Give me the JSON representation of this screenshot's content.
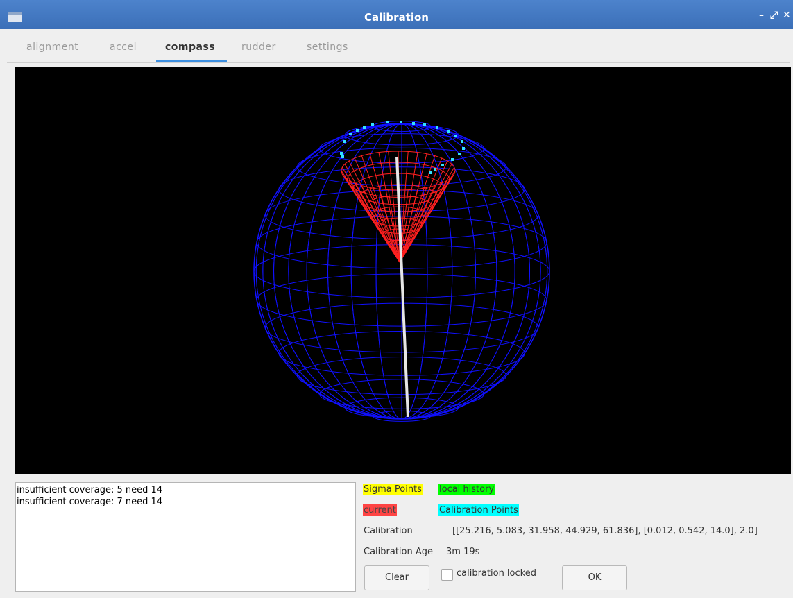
{
  "window": {
    "title": "Calibration",
    "controls": {
      "minimize": "–",
      "maximize": "⤢",
      "close": "✕"
    }
  },
  "tabs": [
    {
      "label": "alignment",
      "active": false
    },
    {
      "label": "accel",
      "active": false
    },
    {
      "label": "compass",
      "active": true
    },
    {
      "label": "rudder",
      "active": false
    },
    {
      "label": "settings",
      "active": false
    }
  ],
  "log": {
    "lines": [
      "insufficient coverage: 5  need 14",
      "insufficient coverage: 7  need 14"
    ]
  },
  "legend": {
    "sigma_points": "Sigma Points",
    "local_history": "local history",
    "current": "current",
    "calibration_points": "Calibration Points",
    "colors": {
      "sigma_points": "#ffff00",
      "local_history": "#00ff00",
      "current": "#ff4444",
      "calibration_points": "#00ffff"
    }
  },
  "calibration": {
    "label": "Calibration",
    "value": "[[25.216, 5.083, 31.958, 44.929, 61.836], [0.012, 0.542, 14.0], 2.0]",
    "age_label": "Calibration Age",
    "age_value": "3m 19s"
  },
  "buttons": {
    "clear": "Clear",
    "ok": "OK"
  },
  "locked_checkbox": {
    "label": "calibration locked",
    "checked": false
  },
  "scene_colors": {
    "sphere": "#1010ff",
    "cone": "#ff2020",
    "axis": "#e6e6e6",
    "points": "#33e0ff",
    "background": "#000000"
  }
}
